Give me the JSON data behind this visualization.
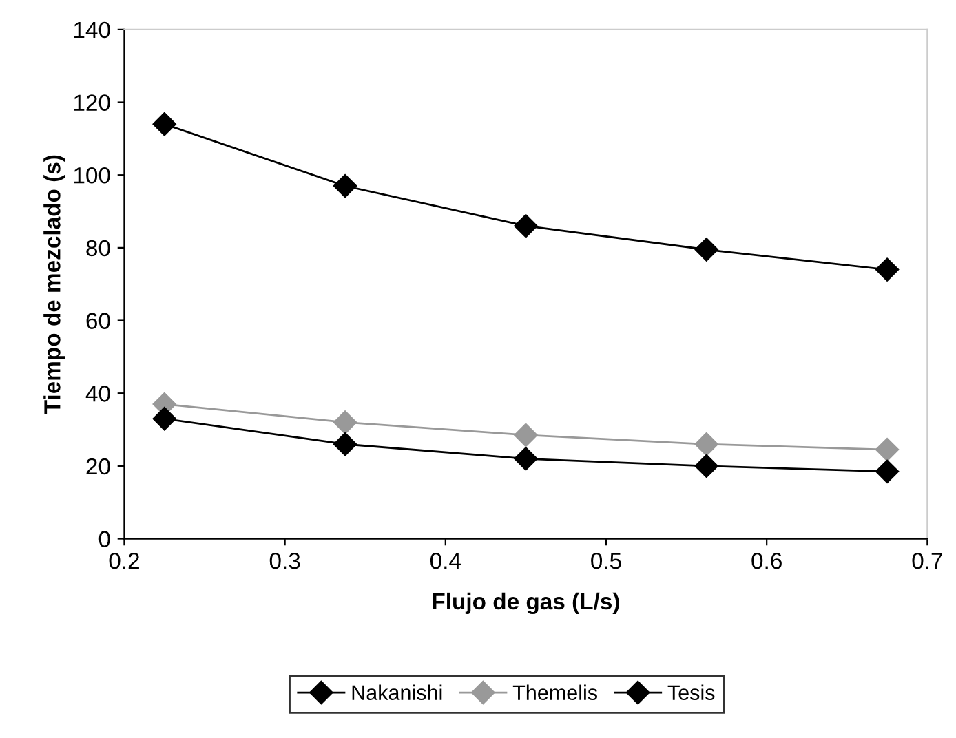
{
  "chart_data": {
    "type": "line",
    "xlabel": "Flujo de gas (L/s)",
    "ylabel": "Tiempo de mezclado (s)",
    "x": [
      0.225,
      0.3375,
      0.45,
      0.5625,
      0.675
    ],
    "series": [
      {
        "name": "Nakanishi",
        "color": "#000000",
        "values": [
          114,
          97,
          86,
          79.5,
          74
        ]
      },
      {
        "name": "Themelis",
        "color": "#999999",
        "values": [
          37,
          32,
          28.5,
          26,
          24.5
        ]
      },
      {
        "name": "Tesis",
        "color": "#000000",
        "values": [
          33,
          26,
          22,
          20,
          18.5
        ]
      }
    ],
    "xlim": [
      0.2,
      0.7
    ],
    "xticks": [
      0.2,
      0.3,
      0.4,
      0.5,
      0.6,
      0.7
    ],
    "ylim": [
      0,
      140
    ],
    "yticks": [
      0,
      20,
      40,
      60,
      80,
      100,
      120,
      140
    ],
    "marker": "diamond",
    "line_style": "solid",
    "grid": false,
    "legend": "bottom"
  }
}
